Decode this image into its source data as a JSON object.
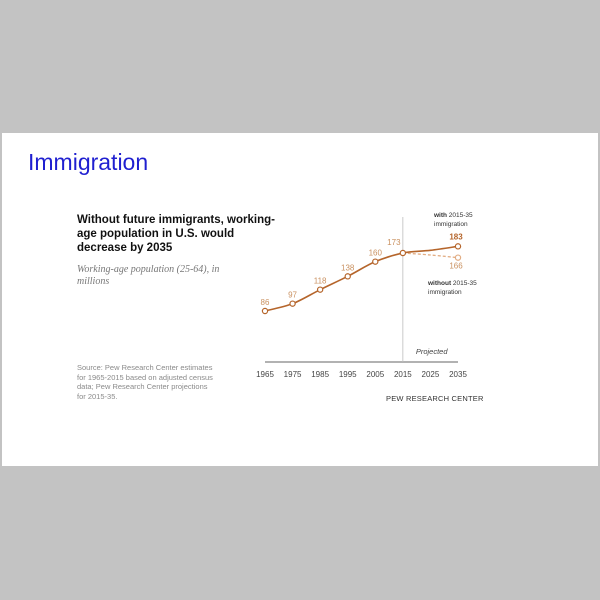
{
  "slide": {
    "title": "Immigration"
  },
  "colors": {
    "background": "#c3c3c3",
    "slide": "#ffffff",
    "title": "#1f1fd0",
    "series_main": "#b5652b",
    "series_projection_without": "#e2ad84",
    "label_value": "#c9905f",
    "axis": "#555555"
  },
  "chart_data": {
    "type": "line",
    "title": "Without future immigrants, working-age population in U.S. would decrease by 2035",
    "subtitle": "Working-age population (25-64), in millions",
    "xlabel": "",
    "ylabel": "",
    "x_ticks": [
      "1965",
      "1975",
      "1985",
      "1995",
      "2005",
      "2015",
      "2025",
      "2035"
    ],
    "xlim": [
      1965,
      2035
    ],
    "ylim": [
      70,
      200
    ],
    "grid": false,
    "divider_year": 2015,
    "divider_label": "Projected",
    "series": [
      {
        "name": "with 2015-35 immigration",
        "style": "solid",
        "points": [
          {
            "x": 1965,
            "y": 86,
            "label": "86"
          },
          {
            "x": 1975,
            "y": 97,
            "label": "97"
          },
          {
            "x": 1985,
            "y": 118,
            "label": "118"
          },
          {
            "x": 1995,
            "y": 138,
            "label": "138"
          },
          {
            "x": 2005,
            "y": 160,
            "label": "160"
          },
          {
            "x": 2015,
            "y": 173,
            "label": "173"
          },
          {
            "x": 2025,
            "y": 177
          },
          {
            "x": 2035,
            "y": 183,
            "label": "183"
          }
        ]
      },
      {
        "name": "without 2015-35 immigration",
        "style": "dashed",
        "points": [
          {
            "x": 2015,
            "y": 173
          },
          {
            "x": 2025,
            "y": 170
          },
          {
            "x": 2035,
            "y": 166,
            "label": "166"
          }
        ]
      }
    ],
    "legend": {
      "with": {
        "bold": "with",
        "rest": " 2015-35",
        "line2": "immigration"
      },
      "without": {
        "bold": "without",
        "rest": " 2015-35",
        "line2": "immigration"
      }
    },
    "source_lines": [
      "Source: Pew Research Center estimates",
      "for 1965-2015 based on adjusted census",
      "data; Pew Research Center projections",
      "for 2015-35."
    ],
    "credit": "PEW RESEARCH CENTER"
  }
}
